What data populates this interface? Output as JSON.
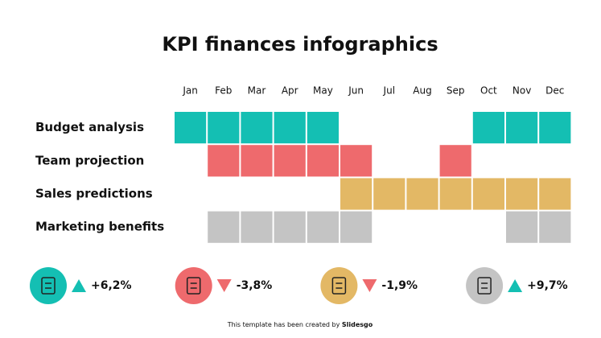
{
  "title": "KPI finances infographics",
  "months": [
    "Jan",
    "Feb",
    "Mar",
    "Apr",
    "May",
    "Jun",
    "Jul",
    "Aug",
    "Sep",
    "Oct",
    "Nov",
    "Dec"
  ],
  "rows": [
    {
      "label": "Budget analysis",
      "color": "#14bfb3",
      "active": [
        true,
        true,
        true,
        true,
        true,
        false,
        false,
        false,
        false,
        true,
        true,
        true
      ]
    },
    {
      "label": "Team projection",
      "color": "#ee6a6d",
      "active": [
        false,
        true,
        true,
        true,
        true,
        true,
        false,
        false,
        true,
        false,
        false,
        false
      ]
    },
    {
      "label": "Sales predictions",
      "color": "#e3b865",
      "active": [
        false,
        false,
        false,
        false,
        false,
        true,
        true,
        true,
        true,
        true,
        true,
        true
      ]
    },
    {
      "label": "Marketing benefits",
      "color": "#c4c4c4",
      "active": [
        false,
        true,
        true,
        true,
        true,
        true,
        false,
        false,
        false,
        false,
        true,
        true
      ]
    }
  ],
  "kpis": [
    {
      "value": "+6,2%",
      "direction": "up",
      "color": "#14bfb3"
    },
    {
      "value": "-3,8%",
      "direction": "down",
      "color": "#ee6a6d"
    },
    {
      "value": "-1,9%",
      "direction": "down",
      "color": "#e3b865"
    },
    {
      "value": "+9,7%",
      "direction": "up",
      "color": "#c4c4c4"
    }
  ],
  "footer": {
    "text": "This template has been created by",
    "brand": "Slidesgo"
  }
}
